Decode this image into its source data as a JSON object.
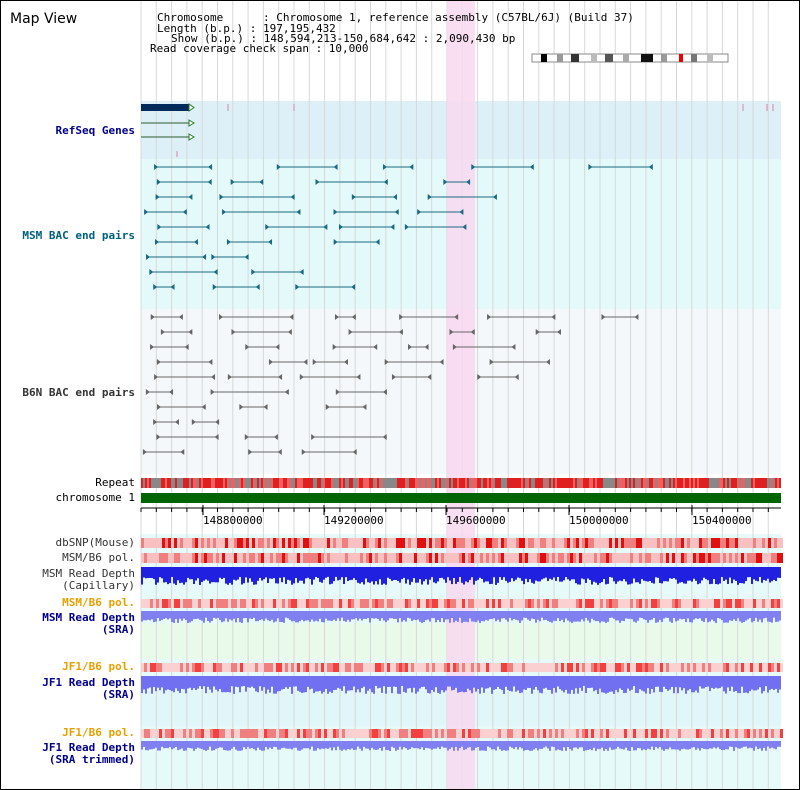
{
  "title": "Map View",
  "header": {
    "line1": "Chromosome      : Chromosome 1, reference assembly (C57BL/6J) (Build 37)",
    "line2": "Length (b.p.) : 197,195,432",
    "line3": "Show (b.p.) : 148,594,213-150,684,642 : 2,090,430 bp",
    "line4": "Read coverage check span : 10,000"
  },
  "tracks": {
    "refseq": "RefSeq Genes",
    "msm_bac": "MSM BAC end pairs",
    "b6n_bac": "B6N BAC end pairs",
    "repeat": "Repeat",
    "chromosome": "chromosome 1",
    "dbsnp": "dbSNP(Mouse)",
    "msm_b6_pol": "MSM/B6 pol.",
    "msm_depth_cap_1": "MSM Read Depth",
    "msm_depth_cap_2": "(Capillary)",
    "msm_b6_pol2": "MSM/B6 pol.",
    "msm_depth_sra_1": "MSM Read Depth",
    "msm_depth_sra_2": "(SRA)",
    "jf1_b6_pol": "JF1/B6 pol.",
    "jf1_depth_sra_1": "JF1 Read Depth",
    "jf1_depth_sra_2": "(SRA)",
    "jf1_b6_pol2": "JF1/B6 pol.",
    "jf1_depth_trim_1": "JF1 Read Depth",
    "jf1_depth_trim_2": "(SRA trimmed)"
  },
  "axis": {
    "ticks": [
      "148800000",
      "149200000",
      "149600000",
      "150000000",
      "150400000"
    ]
  },
  "colors": {
    "refseq_bg": "#ddf0f8",
    "msm_bg": "#e4fafa",
    "b6n_bg": "#f4f8fa",
    "highlight": "#f8d8f0",
    "chromosome_bar": "#006400",
    "depth_capillary": "#2020e0",
    "depth_sra": "#8080f0"
  }
}
